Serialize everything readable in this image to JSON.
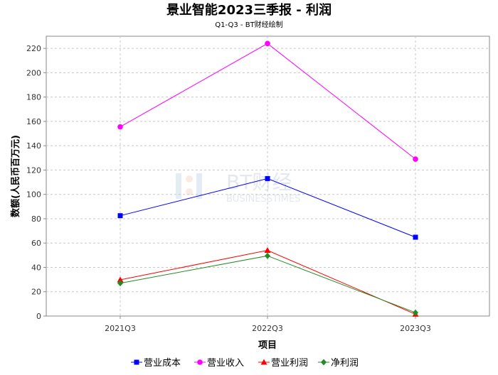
{
  "chart_data": {
    "type": "line",
    "title": "景业智能2023三季报 - 利润",
    "subtitle": "Q1-Q3 - BT财经绘制",
    "xlabel": "项目",
    "ylabel": "数额(人民币百万元)",
    "categories": [
      "2021Q3",
      "2022Q3",
      "2023Q3"
    ],
    "ylim": [
      0,
      230
    ],
    "yticks": [
      0,
      20,
      40,
      60,
      80,
      100,
      120,
      140,
      160,
      180,
      200,
      220
    ],
    "grid": true,
    "legend_position": "bottom",
    "series": [
      {
        "name": "营业成本",
        "values": [
          82.5,
          113.0,
          64.8
        ],
        "color": "#0000ff",
        "marker": "square"
      },
      {
        "name": "营业收入",
        "values": [
          155.5,
          224.0,
          129.0
        ],
        "color": "#ff00ff",
        "marker": "circle"
      },
      {
        "name": "营业利润",
        "values": [
          29.8,
          54.0,
          1.5
        ],
        "color": "#ff0000",
        "marker": "triangle"
      },
      {
        "name": "净利润",
        "values": [
          27.0,
          49.5,
          2.8
        ],
        "color": "#228b22",
        "marker": "diamond"
      }
    ],
    "watermark": {
      "brand": "BT财经",
      "sub": "BUSINESSTIMES"
    }
  }
}
